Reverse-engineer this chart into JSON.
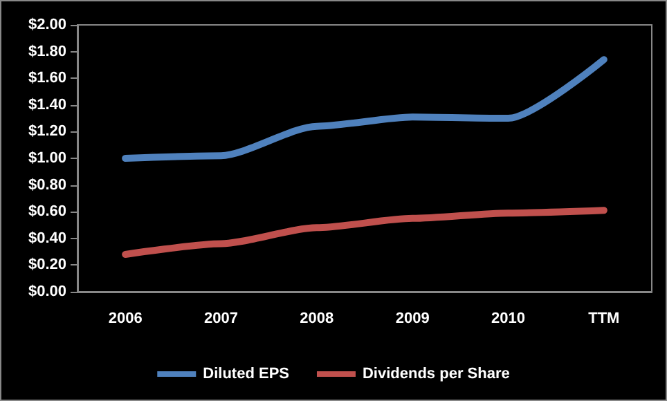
{
  "chart_data": {
    "type": "line",
    "categories": [
      "2006",
      "2007",
      "2008",
      "2009",
      "2010",
      "TTM"
    ],
    "series": [
      {
        "name": "Diluted EPS",
        "color": "#4f81bd",
        "values": [
          1.0,
          1.02,
          1.24,
          1.31,
          1.3,
          1.74
        ]
      },
      {
        "name": "Dividends per Share",
        "color": "#c0504d",
        "values": [
          0.28,
          0.36,
          0.48,
          0.55,
          0.59,
          0.61
        ]
      }
    ],
    "ylim": [
      0,
      2
    ],
    "yticks": [
      {
        "value": 0,
        "label": "$0.00"
      },
      {
        "value": 0.2,
        "label": "$0.20"
      },
      {
        "value": 0.4,
        "label": "$0.40"
      },
      {
        "value": 0.6,
        "label": "$0.60"
      },
      {
        "value": 0.8,
        "label": "$0.80"
      },
      {
        "value": 1,
        "label": "$1.00"
      },
      {
        "value": 1.2,
        "label": "$1.20"
      },
      {
        "value": 1.4,
        "label": "$1.40"
      },
      {
        "value": 1.6,
        "label": "$1.60"
      },
      {
        "value": 1.8,
        "label": "$1.80"
      },
      {
        "value": 2,
        "label": "$2.00"
      }
    ],
    "grid": false,
    "legend": "bottom",
    "marker": "none",
    "line_style": "solid"
  }
}
